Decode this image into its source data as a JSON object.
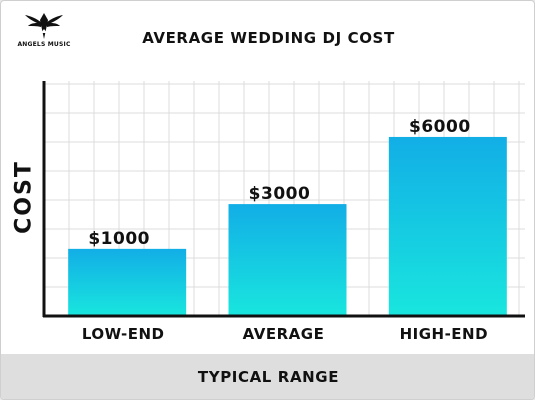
{
  "brand": {
    "name": "ANGELS MUSIC",
    "logo_icon": "angel-wings-icon"
  },
  "colors": {
    "bar_top": "#12aee6",
    "bar_bottom": "#19e6de",
    "grid": "#dcdcdc",
    "axis": "#111111",
    "footer_band": "#dedede"
  },
  "chart_data": {
    "type": "bar",
    "title": "AVERAGE WEDDING DJ COST",
    "xlabel": "TYPICAL RANGE",
    "ylabel": "COST",
    "categories": [
      "LOW-END",
      "AVERAGE",
      "HIGH-END"
    ],
    "values": [
      1000,
      3000,
      6000
    ],
    "value_labels": [
      "$1000",
      "$3000",
      "$6000"
    ],
    "ylim": [
      -2000,
      8500
    ],
    "grid": true,
    "legend": "none"
  }
}
